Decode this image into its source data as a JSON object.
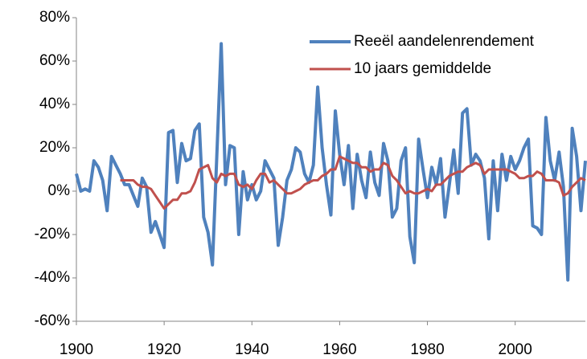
{
  "chart_data": {
    "type": "line",
    "x": [
      1900,
      1901,
      1902,
      1903,
      1904,
      1905,
      1906,
      1907,
      1908,
      1909,
      1910,
      1911,
      1912,
      1913,
      1914,
      1915,
      1916,
      1917,
      1918,
      1919,
      1920,
      1921,
      1922,
      1923,
      1924,
      1925,
      1926,
      1927,
      1928,
      1929,
      1930,
      1931,
      1932,
      1933,
      1934,
      1935,
      1936,
      1937,
      1938,
      1939,
      1940,
      1941,
      1942,
      1943,
      1944,
      1945,
      1946,
      1947,
      1948,
      1949,
      1950,
      1951,
      1952,
      1953,
      1954,
      1955,
      1956,
      1957,
      1958,
      1959,
      1960,
      1961,
      1962,
      1963,
      1964,
      1965,
      1966,
      1967,
      1968,
      1969,
      1970,
      1971,
      1972,
      1973,
      1974,
      1975,
      1976,
      1977,
      1978,
      1979,
      1980,
      1981,
      1982,
      1983,
      1984,
      1985,
      1986,
      1987,
      1988,
      1989,
      1990,
      1991,
      1992,
      1993,
      1994,
      1995,
      1996,
      1997,
      1998,
      1999,
      2000,
      2001,
      2002,
      2003,
      2004,
      2005,
      2006,
      2007,
      2008,
      2009,
      2010,
      2011,
      2012,
      2013,
      2014,
      2015,
      2016
    ],
    "series": [
      {
        "name": "Reeël aandelenrendement",
        "color": "#4f81bd",
        "values": [
          8,
          0,
          1,
          0,
          14,
          11,
          5,
          -9,
          16,
          12,
          8,
          3,
          3,
          -2,
          -7,
          6,
          2,
          -19,
          -14,
          -20,
          -26,
          27,
          28,
          4,
          22,
          14,
          15,
          28,
          31,
          -12,
          -19,
          -34,
          16,
          68,
          3,
          21,
          20,
          -20,
          9,
          -4,
          3,
          -4,
          0,
          14,
          10,
          6,
          -25,
          -12,
          5,
          10,
          20,
          18,
          8,
          4,
          12,
          48,
          20,
          3,
          -11,
          37,
          17,
          3,
          21,
          -8,
          17,
          5,
          -3,
          18,
          4,
          -2,
          22,
          14,
          -12,
          -8,
          14,
          20,
          -21,
          -33,
          24,
          10,
          -3,
          11,
          3,
          15,
          -12,
          3,
          19,
          -1,
          36,
          38,
          12,
          17,
          14,
          6,
          -22,
          14,
          -9,
          17,
          5,
          16,
          10,
          14,
          20,
          24,
          -16,
          -17,
          -20,
          34,
          14,
          5,
          18,
          2,
          -41,
          29,
          16,
          -9,
          14
        ]
      },
      {
        "name": "10 jaars gemiddelde",
        "color": "#c0504d",
        "values": [
          null,
          null,
          null,
          null,
          null,
          null,
          null,
          null,
          null,
          null,
          5,
          5,
          5,
          5,
          3,
          2,
          2,
          1,
          -2,
          -5,
          -8,
          -6,
          -4,
          -4,
          -1,
          -1,
          0,
          4,
          10,
          11,
          12,
          6,
          4,
          8,
          7,
          8,
          8,
          3,
          2,
          3,
          1,
          5,
          8,
          8,
          4,
          5,
          3,
          1,
          -1,
          -1,
          0,
          1,
          3,
          4,
          5,
          5,
          7,
          8,
          10,
          10,
          16,
          15,
          14,
          13,
          13,
          11,
          11,
          9,
          10,
          10,
          13,
          12,
          7,
          5,
          2,
          -1,
          0,
          -1,
          -1,
          0,
          1,
          0,
          3,
          3,
          5,
          7,
          8,
          9,
          9,
          11,
          12,
          13,
          12,
          8,
          10,
          10,
          10,
          10,
          10,
          9,
          8,
          6,
          6,
          7,
          7,
          9,
          8,
          5,
          5,
          5,
          4,
          -2,
          -1,
          2,
          4,
          6,
          5
        ]
      }
    ],
    "xlim": [
      1900,
      2016
    ],
    "xticks": [
      1900,
      1920,
      1940,
      1960,
      1980,
      2000
    ],
    "ylim": [
      -60,
      80
    ],
    "yticks": [
      {
        "value": -60,
        "label": "-60%"
      },
      {
        "value": -40,
        "label": "-40%"
      },
      {
        "value": -20,
        "label": "-20%"
      },
      {
        "value": 0,
        "label": "0%"
      },
      {
        "value": 20,
        "label": "20%"
      },
      {
        "value": 40,
        "label": "40%"
      },
      {
        "value": 60,
        "label": "60%"
      },
      {
        "value": 80,
        "label": "80%"
      }
    ],
    "legend": "top-right"
  }
}
